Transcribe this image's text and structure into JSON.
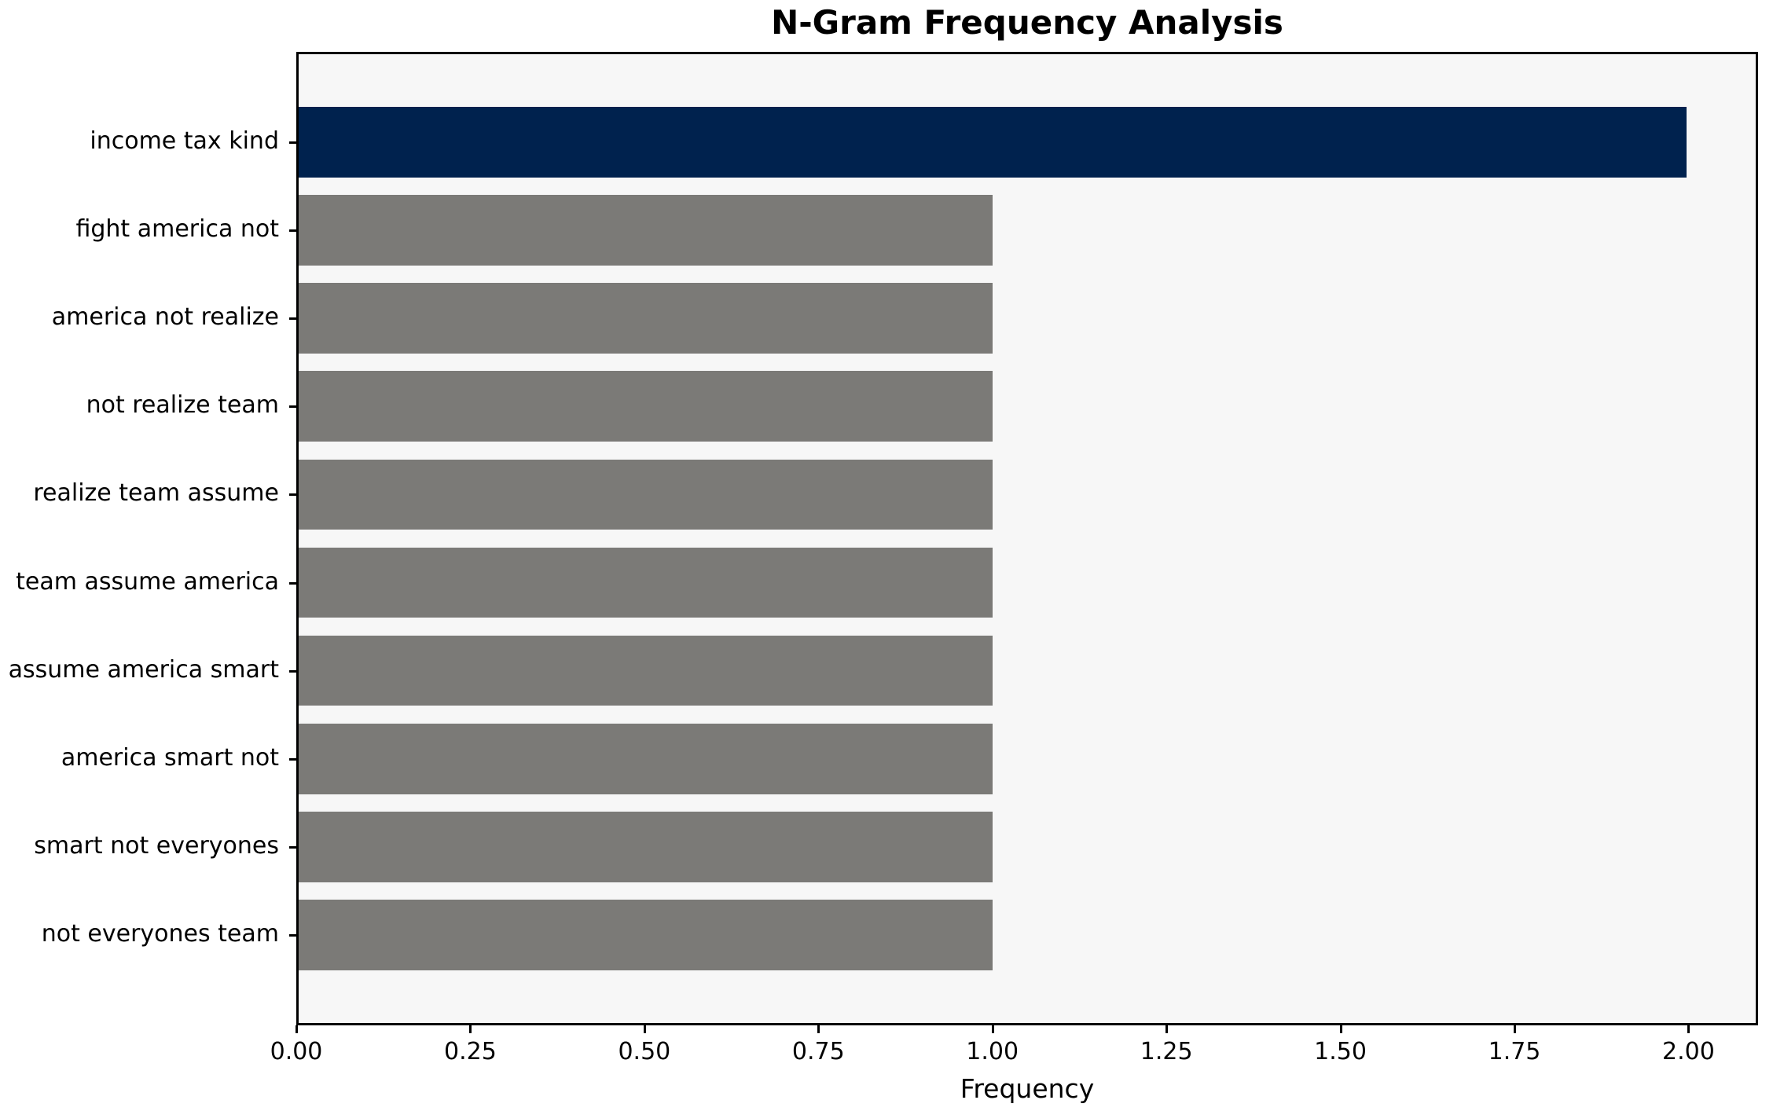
{
  "chart_data": {
    "type": "bar",
    "orientation": "horizontal",
    "title": "N-Gram Frequency Analysis",
    "xlabel": "Frequency",
    "ylabel": "",
    "categories": [
      "income tax kind",
      "fight america not",
      "america not realize",
      "not realize team",
      "realize team assume",
      "team assume america",
      "assume america smart",
      "america smart not",
      "smart not everyones",
      "not everyones team"
    ],
    "values": [
      2,
      1,
      1,
      1,
      1,
      1,
      1,
      1,
      1,
      1
    ],
    "bar_colors": [
      "#00224e",
      "#7b7a77",
      "#7b7a77",
      "#7b7a77",
      "#7b7a77",
      "#7b7a77",
      "#7b7a77",
      "#7b7a77",
      "#7b7a77",
      "#7b7a77"
    ],
    "xlim": [
      0,
      2.1
    ],
    "x_tick_values": [
      0,
      0.25,
      0.5,
      0.75,
      1.0,
      1.25,
      1.5,
      1.75,
      2.0
    ],
    "x_tick_labels": [
      "0.00",
      "0.25",
      "0.50",
      "0.75",
      "1.00",
      "1.25",
      "1.50",
      "1.75",
      "2.00"
    ],
    "grid": false,
    "legend": null,
    "plot_background": "#f7f7f7",
    "spine_color": "#000000",
    "highlight_color": "#00224e",
    "default_color": "#7b7a77"
  }
}
